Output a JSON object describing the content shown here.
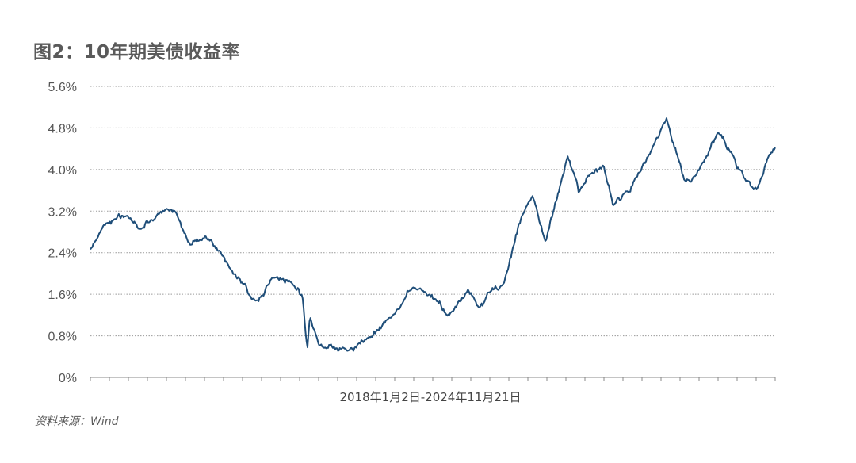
{
  "title": "图2：10年期美债收益率",
  "source": "资料来源：Wind",
  "colors": {
    "line": "#1f4e79",
    "grid": "#9a9a9a",
    "axis": "#888888"
  },
  "chart_data": {
    "type": "line",
    "title": "图2：10年期美债收益率",
    "xlabel": "2018年1月2日-2024年11月21日",
    "ylabel": "",
    "x_range": [
      "2018-01-02",
      "2024-11-21"
    ],
    "ylim": [
      0,
      5.6
    ],
    "yticks": [
      0,
      0.8,
      1.6,
      2.4,
      3.2,
      4.0,
      4.8,
      5.6
    ],
    "ytick_labels": [
      "0%",
      "0.8%",
      "1.6%",
      "2.4%",
      "3.2%",
      "4.0%",
      "4.8%",
      "5.6%"
    ],
    "grid": "horizontal dotted",
    "legend": "none",
    "series": [
      {
        "name": "",
        "x": [
          "2018-01-02",
          "2018-02-21",
          "2018-05-17",
          "2018-07-01",
          "2018-10-08",
          "2018-11-08",
          "2019-01-03",
          "2019-03-01",
          "2019-06-01",
          "2019-09-03",
          "2019-11-01",
          "2020-01-10",
          "2020-02-20",
          "2020-03-09",
          "2020-03-18",
          "2020-04-20",
          "2020-08-04",
          "2020-10-15",
          "2021-01-12",
          "2021-03-31",
          "2021-07-01",
          "2021-08-04",
          "2021-10-20",
          "2021-12-03",
          "2022-01-03",
          "2022-03-01",
          "2022-05-06",
          "2022-06-14",
          "2022-08-01",
          "2022-10-21",
          "2022-12-01",
          "2023-01-03",
          "2023-03-02",
          "2023-04-06",
          "2023-07-03",
          "2023-08-21",
          "2023-10-19",
          "2023-12-01",
          "2023-12-27",
          "2024-02-01",
          "2024-04-25",
          "2024-06-03",
          "2024-08-05",
          "2024-09-16",
          "2024-10-15",
          "2024-11-21"
        ],
        "values": [
          2.46,
          2.94,
          3.11,
          2.86,
          3.23,
          3.19,
          2.56,
          2.72,
          2.08,
          1.47,
          1.92,
          1.82,
          1.56,
          0.54,
          1.18,
          0.62,
          0.51,
          0.75,
          1.15,
          1.74,
          1.45,
          1.17,
          1.69,
          1.35,
          1.63,
          1.82,
          3.12,
          3.48,
          2.6,
          4.25,
          3.53,
          3.88,
          4.08,
          3.3,
          3.86,
          4.34,
          4.99,
          4.22,
          3.79,
          3.87,
          4.7,
          4.4,
          3.78,
          3.62,
          4.08,
          4.42
        ]
      }
    ]
  }
}
